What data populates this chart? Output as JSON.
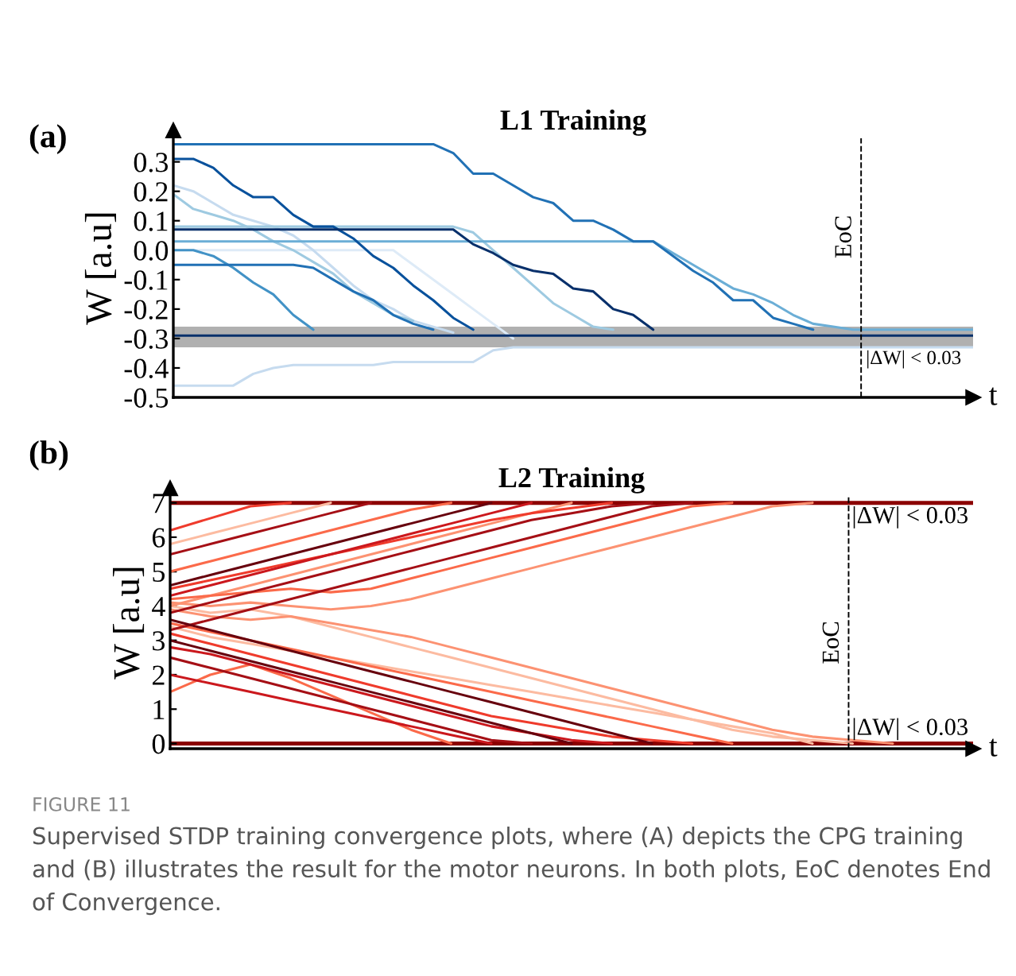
{
  "chart_data": [
    {
      "type": "line",
      "title": "L1 Training",
      "xlabel": "t",
      "ylabel": "W [a.u]",
      "tick_labels": "y",
      "grid": false,
      "marker": "none",
      "line_style": "solid",
      "annotations": [
        "(a)",
        "EoC"
      ],
      "categories": [
        null,
        null,
        null,
        null,
        null,
        null,
        null,
        null,
        null,
        null,
        null,
        null,
        null,
        null,
        null,
        null,
        null,
        null,
        null,
        null,
        null,
        null,
        null,
        null,
        null,
        null,
        null,
        null,
        null,
        null,
        null,
        null,
        null,
        null,
        null,
        null,
        null,
        null,
        null,
        null,
        null
      ],
      "ylim": [
        -0.5,
        0.38
      ],
      "yticks": [
        -0.5,
        -0.4,
        -0.3,
        -0.2,
        -0.1,
        {
          "value": 0,
          "label": "0.0"
        },
        0.1,
        0.2,
        0.3
      ],
      "bands": [
        {
          "axis": "y",
          "from": -0.33,
          "to": -0.26,
          "label": "|ΔW| < 0.03",
          "color": "#b0b0b0"
        }
      ],
      "series": [
        {
          "color": "#c6dbef",
          "values": [
            -0.46,
            -0.46,
            -0.46,
            -0.46,
            -0.42,
            -0.4,
            -0.39,
            -0.39,
            -0.39,
            -0.39,
            -0.39,
            -0.38,
            -0.38,
            -0.38,
            -0.38,
            -0.38,
            -0.34,
            -0.33,
            -0.33,
            -0.33,
            -0.33,
            -0.33,
            -0.33,
            -0.33,
            -0.33,
            -0.33,
            -0.33,
            -0.33,
            -0.33,
            -0.33,
            -0.33,
            -0.33,
            -0.33,
            -0.33,
            -0.33,
            -0.33,
            -0.33,
            -0.33,
            -0.33,
            -0.33,
            -0.33
          ]
        },
        {
          "color": "#deebf7",
          "values": [
            0,
            0,
            0,
            0,
            0,
            0,
            0,
            0,
            0,
            0,
            0,
            0,
            -0.05,
            -0.1,
            -0.15,
            -0.2,
            -0.25,
            -0.3,
            null,
            null,
            null,
            null,
            null,
            null,
            null,
            null,
            null,
            null,
            null,
            null,
            null,
            null,
            null,
            null,
            null,
            null,
            null,
            null,
            null,
            null,
            null
          ]
        },
        {
          "color": "#c6dbef",
          "values": [
            0.22,
            0.2,
            0.16,
            0.12,
            0.1,
            0.08,
            0.05,
            0,
            -0.06,
            -0.12,
            -0.17,
            -0.2,
            -0.24,
            -0.26,
            -0.28,
            null,
            null,
            null,
            null,
            null,
            null,
            null,
            null,
            null,
            null,
            null,
            null,
            null,
            null,
            null,
            null,
            null,
            null,
            null,
            null,
            null,
            null,
            null,
            null,
            null,
            null
          ]
        },
        {
          "color": "#9ecae1",
          "values": [
            0.19,
            0.14,
            0.12,
            0.1,
            0.07,
            0.03,
            0,
            -0.04,
            -0.08,
            -0.14,
            -0.18,
            -0.22,
            -0.24,
            null,
            null,
            null,
            null,
            null,
            null,
            null,
            null,
            null,
            null,
            null,
            null,
            null,
            null,
            null,
            null,
            null,
            null,
            null,
            null,
            null,
            null,
            null,
            null,
            null,
            null,
            null,
            null
          ]
        },
        {
          "color": "#9ecae1",
          "values": [
            0.08,
            0.08,
            0.08,
            0.08,
            0.08,
            0.08,
            0.08,
            0.08,
            0.08,
            0.08,
            0.08,
            0.08,
            0.08,
            0.08,
            0.08,
            0.06,
            0,
            -0.06,
            -0.12,
            -0.18,
            -0.22,
            -0.26,
            -0.27,
            null,
            null,
            null,
            null,
            null,
            null,
            null,
            null,
            null,
            null,
            null,
            null,
            null,
            null,
            null,
            null,
            null,
            null
          ]
        },
        {
          "color": "#6baed6",
          "values": [
            0.03,
            0.03,
            0.03,
            0.03,
            0.03,
            0.03,
            0.03,
            0.03,
            0.03,
            0.03,
            0.03,
            0.03,
            0.03,
            0.03,
            0.03,
            0.03,
            0.03,
            0.03,
            0.03,
            0.03,
            0.03,
            0.03,
            0.03,
            0.03,
            0.03,
            -0.01,
            -0.05,
            -0.09,
            -0.13,
            -0.15,
            -0.18,
            -0.22,
            -0.25,
            -0.26,
            -0.27,
            -0.27,
            -0.27,
            -0.27,
            -0.27,
            -0.27,
            -0.27
          ]
        },
        {
          "color": "#4292c6",
          "values": [
            0,
            0,
            -0.02,
            -0.06,
            -0.11,
            -0.15,
            -0.22,
            -0.27,
            null,
            null,
            null,
            null,
            null,
            null,
            null,
            null,
            null,
            null,
            null,
            null,
            null,
            null,
            null,
            null,
            null,
            null,
            null,
            null,
            null,
            null,
            null,
            null,
            null,
            null,
            null,
            null,
            null,
            null,
            null,
            null,
            null
          ]
        },
        {
          "color": "#2171b5",
          "values": [
            -0.05,
            -0.05,
            -0.05,
            -0.05,
            -0.05,
            -0.05,
            -0.05,
            -0.06,
            -0.1,
            -0.14,
            -0.17,
            -0.22,
            -0.25,
            -0.27,
            null,
            null,
            null,
            null,
            null,
            null,
            null,
            null,
            null,
            null,
            null,
            null,
            null,
            null,
            null,
            null,
            null,
            null,
            null,
            null,
            null,
            null,
            null,
            null,
            null,
            null,
            null
          ]
        },
        {
          "color": "#2171b5",
          "values": [
            0.36,
            0.36,
            0.36,
            0.36,
            0.36,
            0.36,
            0.36,
            0.36,
            0.36,
            0.36,
            0.36,
            0.36,
            0.36,
            0.36,
            0.33,
            0.26,
            0.26,
            0.22,
            0.18,
            0.16,
            0.1,
            0.1,
            0.07,
            0.03,
            0.03,
            -0.02,
            -0.07,
            -0.11,
            -0.17,
            -0.17,
            -0.23,
            -0.25,
            -0.27,
            null,
            null,
            null,
            null,
            null,
            null,
            null,
            null
          ]
        },
        {
          "color": "#08519c",
          "values": [
            0.31,
            0.31,
            0.28,
            0.22,
            0.18,
            0.18,
            0.12,
            0.08,
            0.08,
            0.04,
            -0.02,
            -0.06,
            -0.12,
            -0.17,
            -0.23,
            -0.27,
            null,
            null,
            null,
            null,
            null,
            null,
            null,
            null,
            null,
            null,
            null,
            null,
            null,
            null,
            null,
            null,
            null,
            null,
            null,
            null,
            null,
            null,
            null,
            null,
            null
          ]
        },
        {
          "color": "#08306b",
          "values": [
            0.07,
            0.07,
            0.07,
            0.07,
            0.07,
            0.07,
            0.07,
            0.07,
            0.07,
            0.07,
            0.07,
            0.07,
            0.07,
            0.07,
            0.07,
            0.02,
            -0.01,
            -0.05,
            -0.07,
            -0.08,
            -0.13,
            -0.14,
            -0.2,
            -0.22,
            -0.27,
            null,
            null,
            null,
            null,
            null,
            null,
            null,
            null,
            null,
            null,
            null,
            null,
            null,
            null,
            null,
            null
          ]
        },
        {
          "color": "#08306b",
          "values": [
            -0.29,
            -0.29,
            -0.29,
            -0.29,
            -0.29,
            -0.29,
            -0.29,
            -0.29,
            -0.29,
            -0.29,
            -0.29,
            -0.29,
            -0.29,
            -0.29,
            -0.29,
            -0.29,
            -0.29,
            -0.29,
            -0.29,
            -0.29,
            -0.29,
            -0.29,
            -0.29,
            -0.29,
            -0.29,
            -0.29,
            -0.29,
            -0.29,
            -0.29,
            -0.29,
            -0.29,
            -0.29,
            -0.29,
            -0.29,
            -0.29,
            -0.29,
            -0.29,
            -0.29,
            -0.29,
            -0.29,
            -0.29
          ]
        }
      ]
    },
    {
      "type": "line",
      "title": "L2 Training",
      "xlabel": "t",
      "ylabel": "W [a.u]",
      "tick_labels": "y",
      "grid": false,
      "marker": "none",
      "line_style": "solid",
      "annotations": [
        "(b)",
        "EoC",
        "FIGURE 11",
        "Supervised STDP training convergence plots, where (A) depicts the CPG training and (B) illustrates the result for the motor neurons. In both plots, EoC denotes End of Convergence."
      ],
      "categories": [
        null,
        null,
        null,
        null,
        null,
        null,
        null,
        null,
        null,
        null,
        null,
        null,
        null,
        null,
        null,
        null,
        null,
        null,
        null,
        null,
        null
      ],
      "ylim": [
        -0.15,
        7.2
      ],
      "yticks": [
        0,
        1,
        2,
        3,
        4,
        5,
        6,
        7
      ],
      "ref_lines": [
        {
          "axis": "y",
          "value": 7,
          "label": "|ΔW| < 0.03",
          "color": "#8b0000"
        },
        {
          "axis": "y",
          "value": 0,
          "label": "|ΔW| < 0.03",
          "color": "#8b0000"
        }
      ],
      "series": [
        {
          "color": "#fcbba1",
          "values": [
            4.0,
            3.8,
            3.9,
            3.7,
            3.4,
            3.1,
            2.8,
            2.5,
            2.2,
            1.9,
            1.6,
            1.3,
            1.0,
            0.7,
            0.4,
            0.2,
            0.1,
            0,
            null,
            null,
            null
          ]
        },
        {
          "color": "#fcbba1",
          "values": [
            3.4,
            3.1,
            2.9,
            2.7,
            2.5,
            2.3,
            2.1,
            1.9,
            1.7,
            1.5,
            1.3,
            1.1,
            0.9,
            0.7,
            0.5,
            0.3,
            0,
            null,
            null,
            null,
            null
          ]
        },
        {
          "color": "#fcbba1",
          "values": [
            5.8,
            6.1,
            6.4,
            6.7,
            7,
            null,
            null,
            null,
            null,
            null,
            null,
            null,
            null,
            null,
            null,
            null,
            null,
            null,
            null,
            null,
            null
          ]
        },
        {
          "color": "#fc9272",
          "values": [
            3.9,
            3.7,
            3.6,
            3.7,
            3.5,
            3.3,
            3.1,
            2.8,
            2.5,
            2.2,
            1.9,
            1.6,
            1.3,
            1.0,
            0.7,
            0.4,
            0.2,
            0.1,
            0,
            null,
            null
          ]
        },
        {
          "color": "#fc9272",
          "values": [
            4.1,
            4.0,
            4.1,
            4.0,
            3.9,
            4.0,
            4.2,
            4.5,
            4.8,
            5.1,
            5.4,
            5.7,
            6.0,
            6.3,
            6.6,
            6.9,
            7,
            null,
            null,
            null,
            null
          ]
        },
        {
          "color": "#fc9272",
          "values": [
            4.0,
            4.3,
            4.6,
            4.9,
            5.2,
            5.5,
            5.8,
            6.1,
            6.4,
            6.7,
            7,
            null,
            null,
            null,
            null,
            null,
            null,
            null,
            null,
            null,
            null
          ]
        },
        {
          "color": "#fb6a4a",
          "values": [
            4.2,
            4.3,
            4.4,
            4.5,
            4.4,
            4.5,
            4.8,
            5.1,
            5.4,
            5.7,
            6.0,
            6.3,
            6.6,
            6.9,
            7,
            null,
            null,
            null,
            null,
            null,
            null
          ]
        },
        {
          "color": "#fb6a4a",
          "values": [
            3.5,
            3.25,
            3.0,
            2.75,
            2.5,
            2.25,
            2.0,
            1.75,
            1.5,
            1.25,
            1.0,
            0.75,
            0.5,
            0.25,
            0,
            null,
            null,
            null,
            null,
            null,
            null
          ]
        },
        {
          "color": "#fb6a4a",
          "values": [
            1.5,
            2.0,
            2.3,
            1.9,
            1.4,
            0.9,
            0.4,
            0,
            null,
            null,
            null,
            null,
            null,
            null,
            null,
            null,
            null,
            null,
            null,
            null,
            null
          ]
        },
        {
          "color": "#fb6a4a",
          "values": [
            5.0,
            5.3,
            5.6,
            5.9,
            6.2,
            6.5,
            6.8,
            7,
            null,
            null,
            null,
            null,
            null,
            null,
            null,
            null,
            null,
            null,
            null,
            null,
            null
          ]
        },
        {
          "color": "#ef3b2c",
          "values": [
            6.2,
            6.55,
            6.9,
            7,
            null,
            null,
            null,
            null,
            null,
            null,
            null,
            null,
            null,
            null,
            null,
            null,
            null,
            null,
            null,
            null,
            null
          ]
        },
        {
          "color": "#ef3b2c",
          "values": [
            4.5,
            4.75,
            5.0,
            5.25,
            5.5,
            5.75,
            6.0,
            6.25,
            6.5,
            6.7,
            6.85,
            7,
            null,
            null,
            null,
            null,
            null,
            null,
            null,
            null,
            null
          ]
        },
        {
          "color": "#ef3b2c",
          "values": [
            3.2,
            2.9,
            2.6,
            2.3,
            2.0,
            1.7,
            1.4,
            1.1,
            0.8,
            0.6,
            0.4,
            0.2,
            0.1,
            0,
            null,
            null,
            null,
            null,
            null,
            null,
            null
          ]
        },
        {
          "color": "#cb181d",
          "values": [
            4.3,
            4.6,
            4.9,
            5.2,
            5.5,
            5.8,
            6.1,
            6.4,
            6.7,
            7,
            null,
            null,
            null,
            null,
            null,
            null,
            null,
            null,
            null,
            null,
            null
          ]
        },
        {
          "color": "#cb181d",
          "values": [
            2.0,
            1.75,
            1.5,
            1.25,
            1.0,
            0.75,
            0.5,
            0.25,
            0,
            null,
            null,
            null,
            null,
            null,
            null,
            null,
            null,
            null,
            null,
            null,
            null
          ]
        },
        {
          "color": "#cb181d",
          "values": [
            2.8,
            2.6,
            2.3,
            2.0,
            1.7,
            1.4,
            1.1,
            0.8,
            0.5,
            0.3,
            0.1,
            0,
            null,
            null,
            null,
            null,
            null,
            null,
            null,
            null,
            null
          ]
        },
        {
          "color": "#a50f15",
          "values": [
            5.5,
            5.8,
            6.1,
            6.4,
            6.7,
            7,
            null,
            null,
            null,
            null,
            null,
            null,
            null,
            null,
            null,
            null,
            null,
            null,
            null,
            null,
            null
          ]
        },
        {
          "color": "#a50f15",
          "values": [
            3.8,
            4.1,
            4.4,
            4.7,
            5.0,
            5.3,
            5.6,
            5.9,
            6.2,
            6.5,
            6.7,
            6.9,
            7,
            null,
            null,
            null,
            null,
            null,
            null,
            null,
            null
          ]
        },
        {
          "color": "#a50f15",
          "values": [
            2.5,
            2.2,
            1.9,
            1.6,
            1.3,
            1.0,
            0.7,
            0.4,
            0.1,
            0,
            null,
            null,
            null,
            null,
            null,
            null,
            null,
            null,
            null,
            null,
            null
          ]
        },
        {
          "color": "#a50f15",
          "values": [
            3.3,
            3.6,
            3.9,
            4.2,
            4.5,
            4.8,
            5.1,
            5.4,
            5.7,
            6.0,
            6.3,
            6.6,
            6.9,
            7,
            null,
            null,
            null,
            null,
            null,
            null,
            null
          ]
        },
        {
          "color": "#67000d",
          "values": [
            4.6,
            4.9,
            5.2,
            5.5,
            5.8,
            6.1,
            6.4,
            6.7,
            7,
            null,
            null,
            null,
            null,
            null,
            null,
            null,
            null,
            null,
            null,
            null,
            null
          ]
        },
        {
          "color": "#67000d",
          "values": [
            3.0,
            2.7,
            2.4,
            2.1,
            1.8,
            1.5,
            1.2,
            0.9,
            0.6,
            0.3,
            0,
            null,
            null,
            null,
            null,
            null,
            null,
            null,
            null,
            null,
            null
          ]
        },
        {
          "color": "#67000d",
          "values": [
            3.6,
            3.3,
            3.0,
            2.7,
            2.4,
            2.1,
            1.8,
            1.5,
            1.2,
            0.9,
            0.6,
            0.3,
            0,
            null,
            null,
            null,
            null,
            null,
            null,
            null,
            null
          ]
        }
      ]
    }
  ]
}
